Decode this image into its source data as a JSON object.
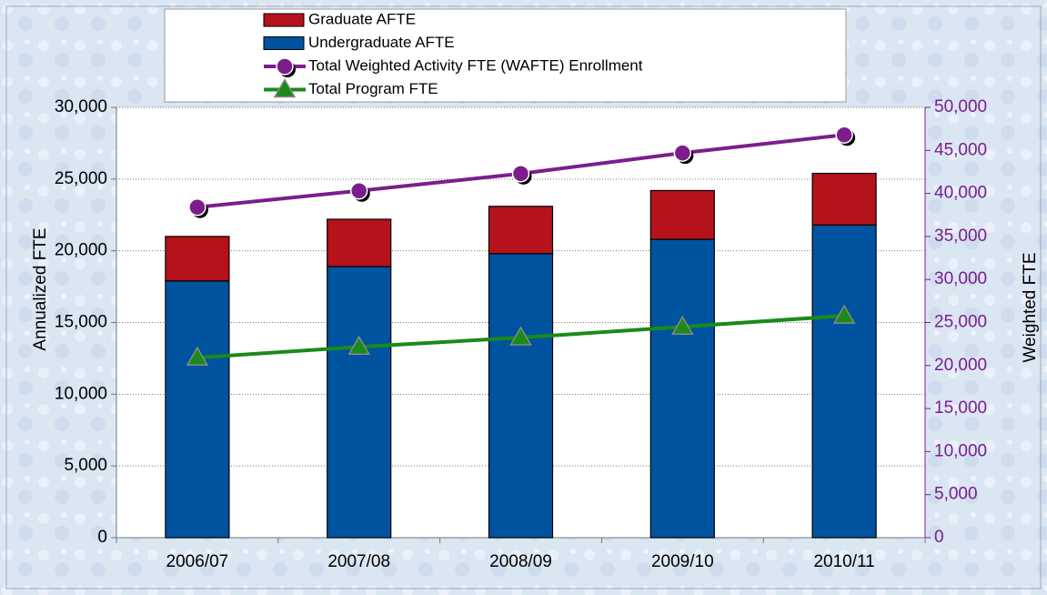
{
  "chart_data": {
    "type": "bar",
    "stacked": true,
    "categories": [
      "2006/07",
      "2007/08",
      "2008/09",
      "2009/10",
      "2010/11"
    ],
    "series": [
      {
        "name": "Graduate AFTE",
        "type": "bar",
        "color": "#b5121b",
        "values": [
          3100,
          3300,
          3300,
          3400,
          3600
        ]
      },
      {
        "name": "Undergraduate AFTE",
        "type": "bar",
        "color": "#00539f",
        "values": [
          17900,
          18900,
          19800,
          20800,
          21800
        ]
      },
      {
        "name": "Total Weighted Activity FTE (WAFTE) Enrollment",
        "type": "line",
        "marker": "circle",
        "axis": "y2",
        "color": "#7b1e8c",
        "values": [
          38400,
          40300,
          42300,
          44700,
          46800
        ]
      },
      {
        "name": "Total Program FTE",
        "type": "line",
        "marker": "triangle",
        "color": "#1a8a1a",
        "values": [
          12550,
          13300,
          13950,
          14700,
          15470
        ]
      }
    ],
    "ylabel": "Annualized FTE",
    "y2label": "Weighted FTE",
    "ylim": [
      0,
      30000
    ],
    "yticks": [
      0,
      {
        "value": 5000,
        "label": "5,000"
      },
      {
        "value": 10000,
        "label": "10,000"
      },
      {
        "value": 15000,
        "label": "15,000"
      },
      {
        "value": 20000,
        "label": "20,000"
      },
      {
        "value": 25000,
        "label": "25,000"
      },
      {
        "value": 30000,
        "label": "30,000"
      }
    ],
    "y2lim": [
      0,
      50000
    ],
    "y2ticks": [
      0,
      {
        "value": 5000,
        "label": "5,000"
      },
      {
        "value": 10000,
        "label": "10,000"
      },
      {
        "value": 15000,
        "label": "15,000"
      },
      {
        "value": 20000,
        "label": "20,000"
      },
      {
        "value": 25000,
        "label": "25,000"
      },
      {
        "value": 30000,
        "label": "30,000"
      },
      {
        "value": 35000,
        "label": "35,000"
      },
      {
        "value": 40000,
        "label": "40,000"
      },
      {
        "value": 45000,
        "label": "45,000"
      },
      {
        "value": 50000,
        "label": "50,000"
      }
    ],
    "y2color": "#7b1e8c",
    "grid": true,
    "legend": "top"
  }
}
